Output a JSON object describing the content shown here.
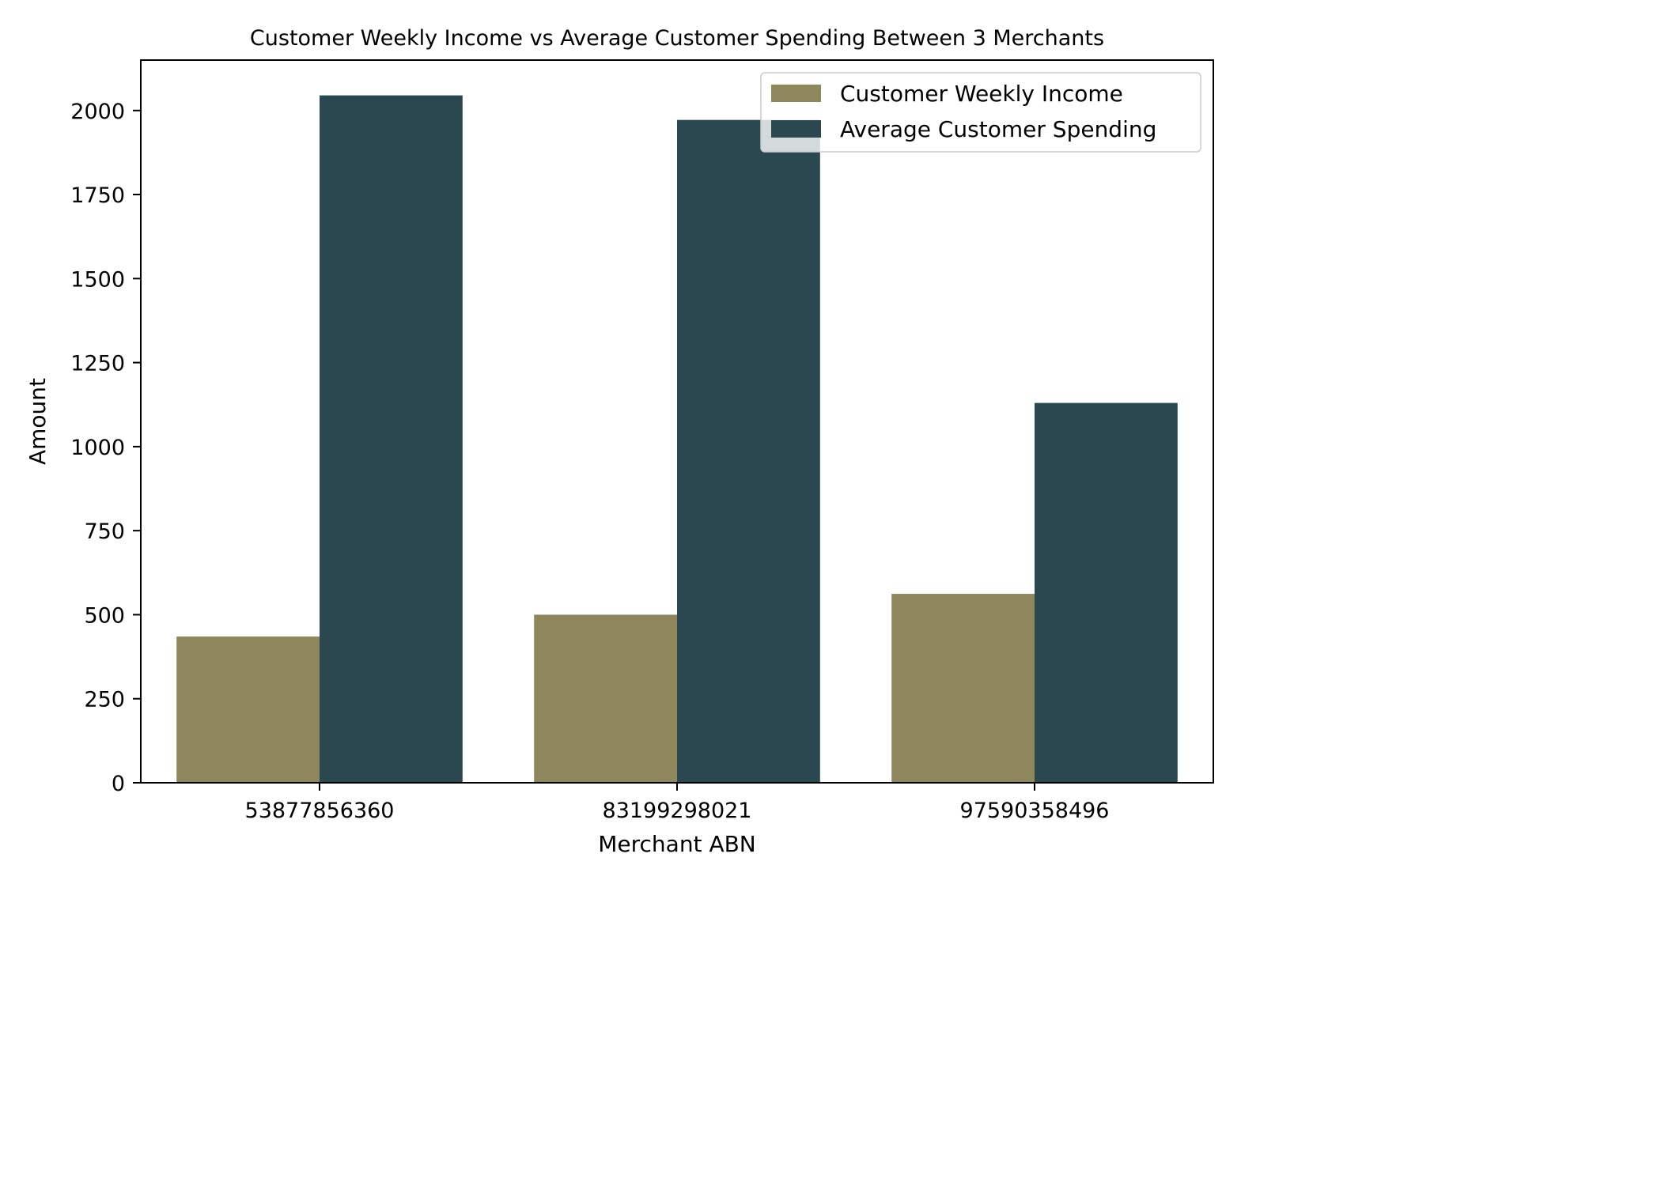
{
  "chart_data": {
    "type": "bar",
    "title": "Customer Weekly Income vs Average Customer Spending Between 3 Merchants",
    "xlabel": "Merchant ABN",
    "ylabel": "Amount",
    "categories": [
      "53877856360",
      "83199298021",
      "97590358496"
    ],
    "series": [
      {
        "name": "Customer Weekly Income",
        "values": [
          435,
          500,
          562
        ],
        "color": "#8f875c"
      },
      {
        "name": "Average Customer Spending",
        "values": [
          2045,
          1972,
          1130
        ],
        "color": "#2b4850"
      }
    ],
    "ylim": [
      0,
      2150
    ],
    "yticks": [
      0,
      250,
      500,
      750,
      1000,
      1250,
      1500,
      1750,
      2000
    ],
    "ytick_labels": [
      "0",
      "250",
      "500",
      "750",
      "1000",
      "1250",
      "1500",
      "1750",
      "2000"
    ],
    "grid": false,
    "legend_position": "top-right"
  }
}
